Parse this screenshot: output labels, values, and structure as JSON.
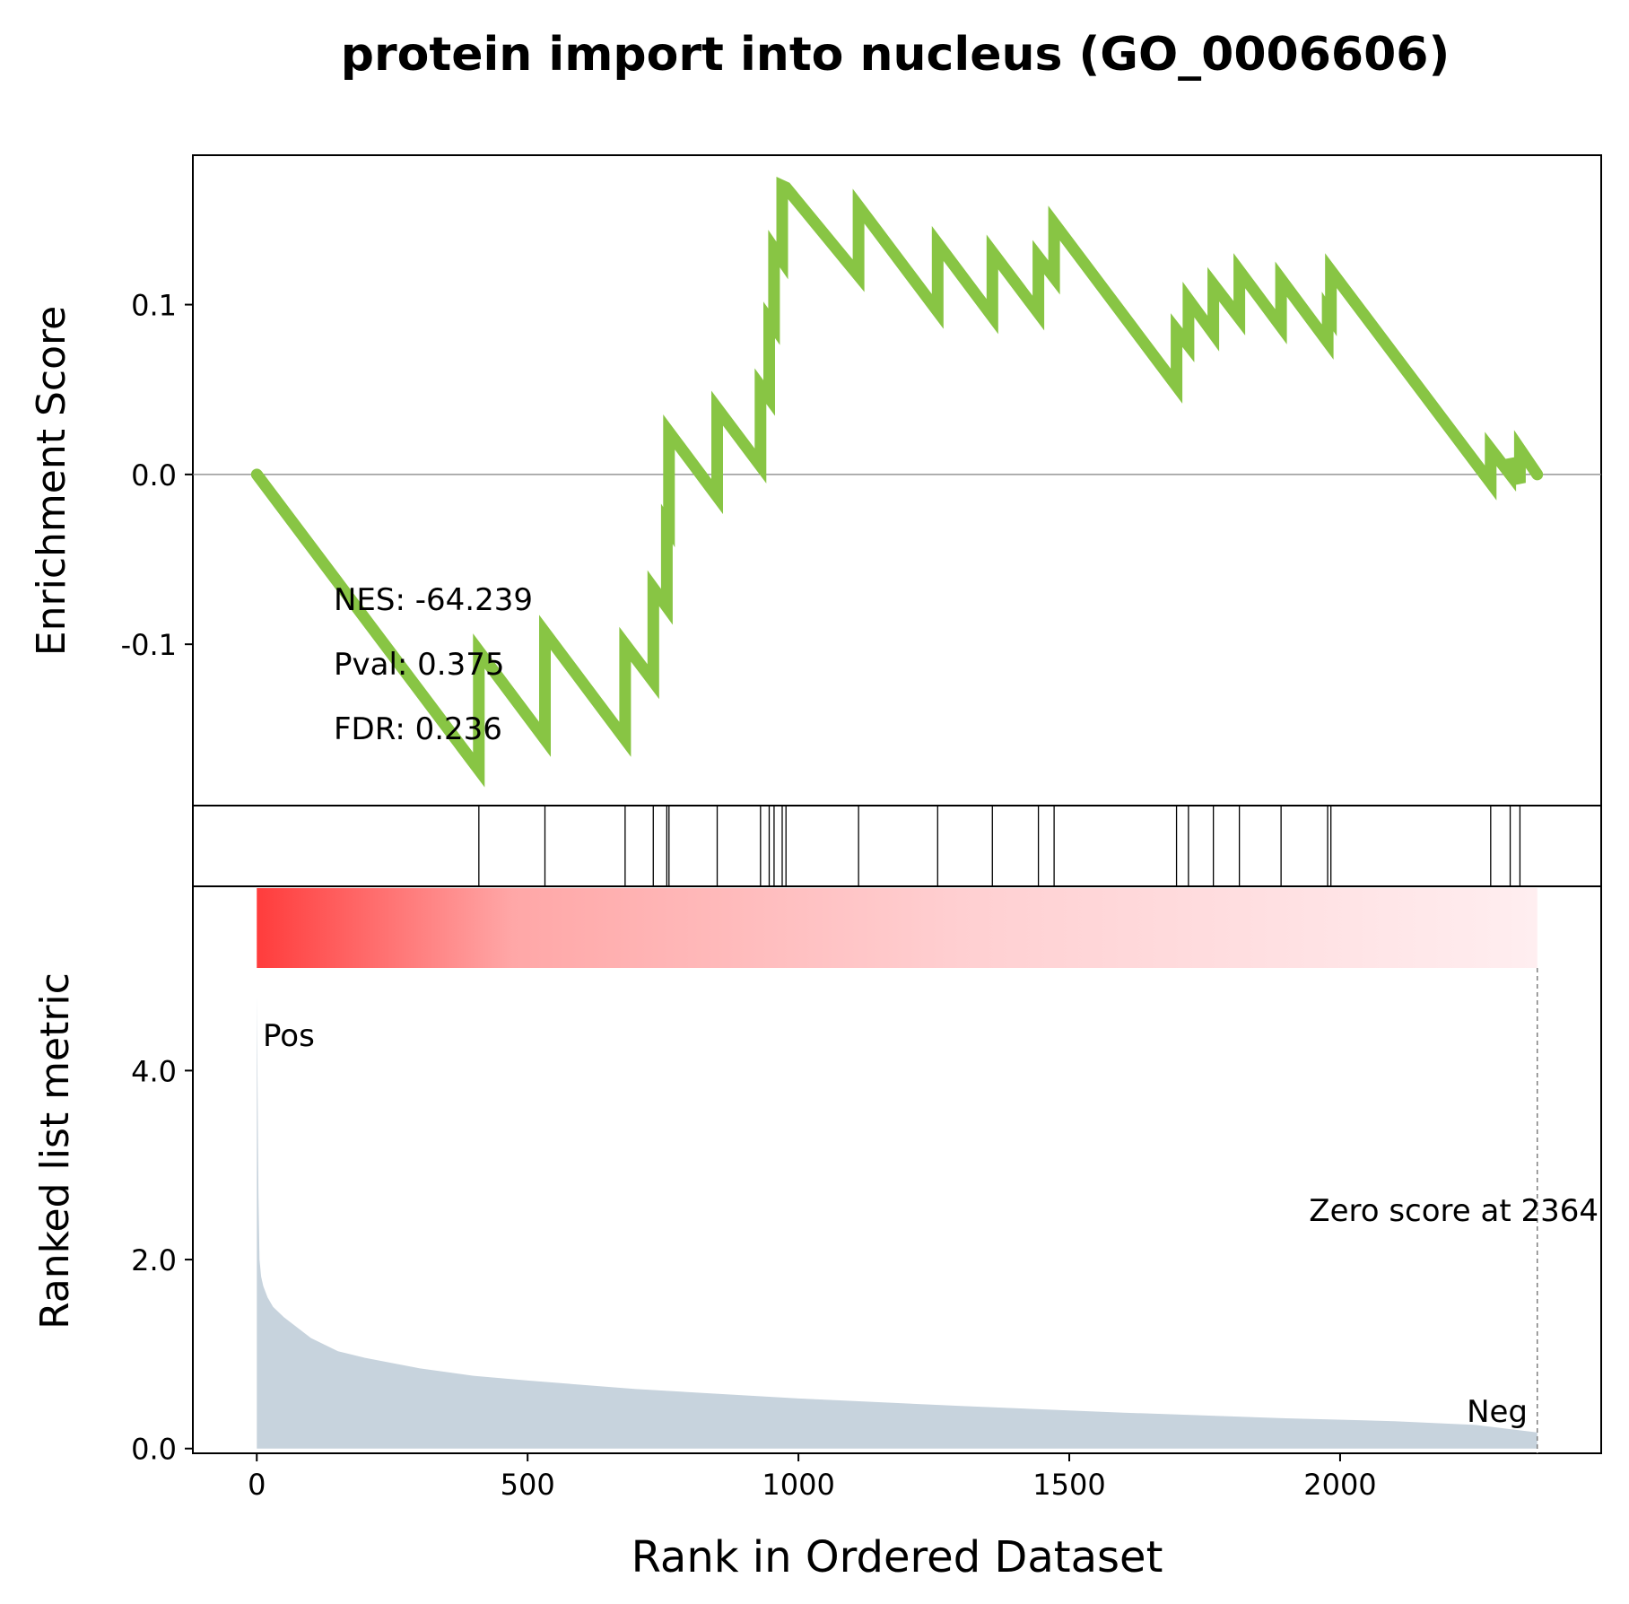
{
  "title": "protein import into nucleus (GO_0006606)",
  "chart_data": {
    "type": "line",
    "title": "protein import into nucleus (GO_0006606)",
    "xlabel": "Rank in Ordered Dataset",
    "x_ticks": [
      "0",
      "500",
      "1000",
      "1500",
      "2000"
    ],
    "xlim": [
      -118,
      2482
    ],
    "panels": {
      "enrichment": {
        "ylabel": "Enrichment Score",
        "ylim": [
          -0.195,
          0.188
        ],
        "y_ticks": [
          {
            "value": 0.1,
            "label": "0.1"
          },
          {
            "value": 0.0,
            "label": "0.0"
          },
          {
            "value": -0.1,
            "label": "-0.1"
          }
        ],
        "color": "#88c544",
        "running_es": {
          "x": [
            0,
            410,
            410,
            532,
            532,
            680,
            680,
            732,
            732,
            757,
            757,
            761,
            761,
            850,
            850,
            930,
            930,
            946,
            946,
            955,
            955,
            970,
            970,
            977,
            977,
            1111,
            1111,
            1257,
            1257,
            1358,
            1358,
            1443,
            1443,
            1472,
            1472,
            1698,
            1698,
            1720,
            1720,
            1766,
            1766,
            1814,
            1814,
            1891,
            1891,
            1977,
            1977,
            1983,
            1983,
            2278,
            2278,
            2314,
            2314,
            2332,
            2332,
            2364
          ],
          "y": [
            0.0,
            -0.174,
            -0.104,
            -0.156,
            -0.093,
            -0.156,
            -0.1,
            -0.122,
            -0.067,
            -0.078,
            -0.029,
            -0.031,
            0.025,
            -0.013,
            0.039,
            0.005,
            0.052,
            0.045,
            0.091,
            0.087,
            0.133,
            0.126,
            0.17,
            0.169,
            0.169,
            0.117,
            0.158,
            0.096,
            0.136,
            0.093,
            0.131,
            0.095,
            0.128,
            0.116,
            0.148,
            0.052,
            0.085,
            0.076,
            0.103,
            0.083,
            0.112,
            0.092,
            0.12,
            0.087,
            0.115,
            0.078,
            0.096,
            0.093,
            0.12,
            -0.005,
            0.015,
            0.0,
            0.009,
            -0.005,
            0.015,
            0.0
          ]
        },
        "annotations": [
          "NES: -64.239",
          "Pval: 0.375",
          "FDR: 0.236"
        ],
        "zero_line": true
      },
      "hits": {
        "x": [
          410,
          532,
          680,
          732,
          757,
          761,
          850,
          930,
          946,
          955,
          970,
          977,
          1111,
          1257,
          1358,
          1443,
          1472,
          1698,
          1720,
          1766,
          1814,
          1891,
          1977,
          1983,
          2278,
          2314,
          2332
        ]
      },
      "ranked_metric": {
        "ylabel": "Ranked list metric",
        "ylim": [
          -0.05,
          5.95
        ],
        "y_ticks": [
          {
            "value": 0,
            "label": "0.0"
          },
          {
            "value": 2,
            "label": "2.0"
          },
          {
            "value": 4,
            "label": "4.0"
          }
        ],
        "fill_color": "#c7d3dd",
        "n_genes": 2364,
        "metric_curve": {
          "x": [
            0,
            3,
            5,
            8,
            12,
            20,
            30,
            50,
            75,
            100,
            150,
            200,
            300,
            400,
            500,
            700,
            1000,
            1300,
            1600,
            1900,
            2100,
            2250,
            2364
          ],
          "y": [
            4.8,
            2.7,
            2.0,
            1.82,
            1.72,
            1.6,
            1.5,
            1.39,
            1.28,
            1.17,
            1.03,
            0.96,
            0.85,
            0.77,
            0.72,
            0.63,
            0.53,
            0.45,
            0.38,
            0.32,
            0.29,
            0.25,
            0.17
          ]
        },
        "pos_label": "Pos",
        "neg_label": "Neg",
        "pos_color": "#ff0000",
        "neg_color": "#0000ff",
        "zero_score_label": "Zero score at 2364",
        "zero_score_x": 2364,
        "heat_bar_color": "#ff0000"
      }
    }
  }
}
